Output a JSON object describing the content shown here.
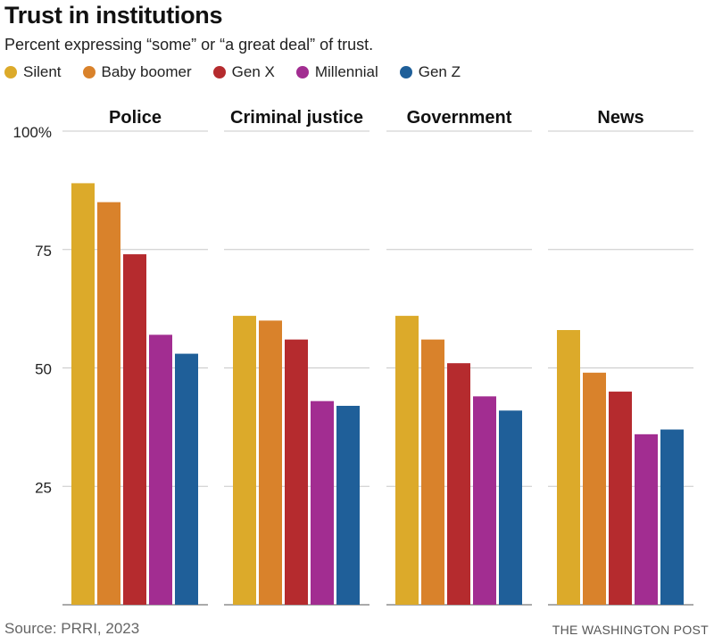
{
  "chart_data": {
    "type": "bar",
    "title": "Trust in institutions",
    "subtitle": "Percent expressing “some” or “a great deal” of trust.",
    "panels": [
      "Police",
      "Criminal justice",
      "Government",
      "News"
    ],
    "series": [
      {
        "name": "Silent",
        "color": "#dcaa2a",
        "values": [
          89,
          61,
          61,
          58
        ]
      },
      {
        "name": "Baby boomer",
        "color": "#d9822b",
        "values": [
          85,
          60,
          56,
          49
        ]
      },
      {
        "name": "Gen X",
        "color": "#b52b2e",
        "values": [
          74,
          56,
          51,
          45
        ]
      },
      {
        "name": "Millennial",
        "color": "#a22d91",
        "values": [
          57,
          43,
          44,
          36
        ]
      },
      {
        "name": "Gen Z",
        "color": "#1f5f99",
        "values": [
          53,
          42,
          41,
          37
        ]
      }
    ],
    "ylim": [
      0,
      100
    ],
    "yticks": [
      100,
      75,
      50,
      25
    ],
    "ytick_labels": [
      "100%",
      "75",
      "50",
      "25"
    ],
    "grid": true,
    "legend": "top-left"
  },
  "source": "Source: PRRI, 2023",
  "credit": "THE WASHINGTON POST"
}
